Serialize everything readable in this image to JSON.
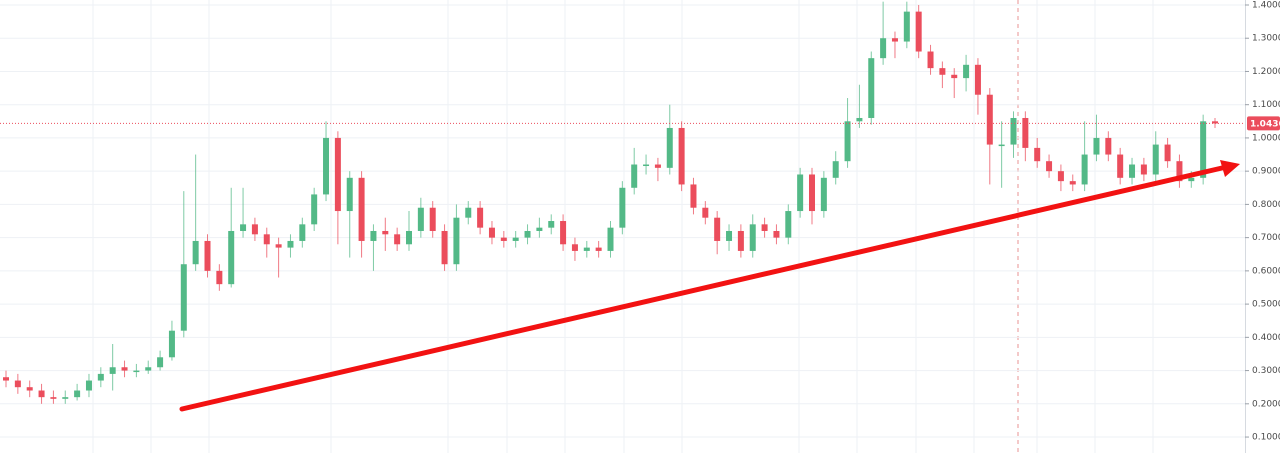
{
  "chart_data": {
    "type": "candlestick",
    "open": [
      0.28,
      0.27,
      0.25,
      0.24,
      0.22,
      0.215,
      0.22,
      0.24,
      0.27,
      0.29,
      0.31,
      0.3,
      0.3,
      0.31,
      0.34,
      0.42,
      0.62,
      0.69,
      0.6,
      0.56,
      0.72,
      0.74,
      0.71,
      0.68,
      0.67,
      0.69,
      0.74,
      0.83,
      1.0,
      0.78,
      0.88,
      0.69,
      0.72,
      0.71,
      0.68,
      0.72,
      0.79,
      0.72,
      0.62,
      0.76,
      0.79,
      0.73,
      0.7,
      0.69,
      0.7,
      0.72,
      0.73,
      0.75,
      0.68,
      0.66,
      0.67,
      0.66,
      0.73,
      0.85,
      0.92,
      0.92,
      0.91,
      1.03,
      0.86,
      0.79,
      0.76,
      0.69,
      0.72,
      0.66,
      0.74,
      0.72,
      0.7,
      0.78,
      0.89,
      0.78,
      0.88,
      0.93,
      1.05,
      1.06,
      1.24,
      1.3,
      1.29,
      1.38,
      1.26,
      1.21,
      1.19,
      1.18,
      1.22,
      1.13,
      0.98,
      0.98,
      1.06,
      0.97,
      0.93,
      0.9,
      0.87,
      0.86,
      0.95,
      1.0,
      0.95,
      0.88,
      0.92,
      0.89,
      0.98,
      0.93,
      0.87,
      0.88,
      1.05
    ],
    "high": [
      0.3,
      0.29,
      0.27,
      0.26,
      0.24,
      0.24,
      0.26,
      0.29,
      0.31,
      0.38,
      0.33,
      0.32,
      0.33,
      0.36,
      0.45,
      0.84,
      0.95,
      0.71,
      0.62,
      0.85,
      0.85,
      0.76,
      0.73,
      0.7,
      0.71,
      0.76,
      0.85,
      1.05,
      1.02,
      0.9,
      0.9,
      0.74,
      0.76,
      0.73,
      0.78,
      0.82,
      0.81,
      0.74,
      0.8,
      0.81,
      0.81,
      0.75,
      0.72,
      0.72,
      0.74,
      0.76,
      0.77,
      0.77,
      0.7,
      0.69,
      0.69,
      0.75,
      0.87,
      0.97,
      0.95,
      0.94,
      1.1,
      1.05,
      0.88,
      0.81,
      0.78,
      0.74,
      0.74,
      0.77,
      0.76,
      0.74,
      0.8,
      0.91,
      0.91,
      0.9,
      0.96,
      1.12,
      1.16,
      1.26,
      1.41,
      1.32,
      1.41,
      1.4,
      1.28,
      1.23,
      1.21,
      1.25,
      1.24,
      1.15,
      1.05,
      1.08,
      1.08,
      1.0,
      0.95,
      0.92,
      0.89,
      1.05,
      1.07,
      1.02,
      0.97,
      0.94,
      0.94,
      1.02,
      1.0,
      0.95,
      0.9,
      1.07,
      1.06
    ],
    "low": [
      0.25,
      0.23,
      0.22,
      0.2,
      0.2,
      0.2,
      0.21,
      0.22,
      0.25,
      0.24,
      0.28,
      0.28,
      0.29,
      0.3,
      0.33,
      0.4,
      0.6,
      0.58,
      0.54,
      0.55,
      0.7,
      0.69,
      0.64,
      0.58,
      0.64,
      0.67,
      0.72,
      0.81,
      0.68,
      0.64,
      0.64,
      0.6,
      0.66,
      0.66,
      0.66,
      0.7,
      0.7,
      0.6,
      0.6,
      0.74,
      0.71,
      0.68,
      0.67,
      0.67,
      0.68,
      0.7,
      0.71,
      0.66,
      0.63,
      0.64,
      0.64,
      0.64,
      0.71,
      0.83,
      0.89,
      0.87,
      0.89,
      0.84,
      0.77,
      0.74,
      0.65,
      0.66,
      0.64,
      0.64,
      0.7,
      0.68,
      0.68,
      0.76,
      0.74,
      0.76,
      0.86,
      0.91,
      1.03,
      1.04,
      1.22,
      1.24,
      1.27,
      1.24,
      1.19,
      1.15,
      1.12,
      1.14,
      1.07,
      0.86,
      0.85,
      0.94,
      0.93,
      0.91,
      0.88,
      0.84,
      0.84,
      0.84,
      0.93,
      0.93,
      0.86,
      0.86,
      0.87,
      0.87,
      0.91,
      0.85,
      0.85,
      0.86,
      1.03
    ],
    "close": [
      0.27,
      0.25,
      0.24,
      0.22,
      0.215,
      0.22,
      0.24,
      0.27,
      0.29,
      0.31,
      0.3,
      0.3,
      0.31,
      0.34,
      0.42,
      0.62,
      0.69,
      0.6,
      0.56,
      0.72,
      0.74,
      0.71,
      0.68,
      0.67,
      0.69,
      0.74,
      0.83,
      1.0,
      0.78,
      0.88,
      0.69,
      0.72,
      0.71,
      0.68,
      0.72,
      0.79,
      0.72,
      0.62,
      0.76,
      0.79,
      0.73,
      0.7,
      0.69,
      0.7,
      0.72,
      0.73,
      0.75,
      0.68,
      0.66,
      0.67,
      0.66,
      0.73,
      0.85,
      0.92,
      0.92,
      0.91,
      1.03,
      0.86,
      0.79,
      0.76,
      0.69,
      0.72,
      0.66,
      0.74,
      0.72,
      0.7,
      0.78,
      0.89,
      0.78,
      0.88,
      0.93,
      1.05,
      1.06,
      1.24,
      1.3,
      1.29,
      1.38,
      1.26,
      1.21,
      1.19,
      1.18,
      1.22,
      1.13,
      0.98,
      0.98,
      1.06,
      0.97,
      0.93,
      0.9,
      0.87,
      0.86,
      0.95,
      1.0,
      0.95,
      0.88,
      0.92,
      0.89,
      0.98,
      0.93,
      0.87,
      0.88,
      1.05,
      1.0436
    ],
    "up_color": "#53b987",
    "down_color": "#eb4d5c",
    "last_price": 1.0436,
    "ylim": [
      0.052,
      1.415
    ],
    "yticks": [
      {
        "value": 0.1,
        "label": "0.1000"
      },
      {
        "value": 0.2,
        "label": "0.2000"
      },
      {
        "value": 0.3,
        "label": "0.3000"
      },
      {
        "value": 0.4,
        "label": "0.4000"
      },
      {
        "value": 0.5,
        "label": "0.5000"
      },
      {
        "value": 0.6,
        "label": "0.6000"
      },
      {
        "value": 0.7,
        "label": "0.7000"
      },
      {
        "value": 0.8,
        "label": "0.8000"
      },
      {
        "value": 0.9,
        "label": "0.9000"
      },
      {
        "value": 1.0,
        "label": "1.0000"
      },
      {
        "value": 1.1,
        "label": "1.1000"
      },
      {
        "value": 1.2,
        "label": "1.2000"
      },
      {
        "value": 1.3,
        "label": "1.3000"
      },
      {
        "value": 1.4,
        "label": "1.4000"
      }
    ],
    "grid": true
  }
}
